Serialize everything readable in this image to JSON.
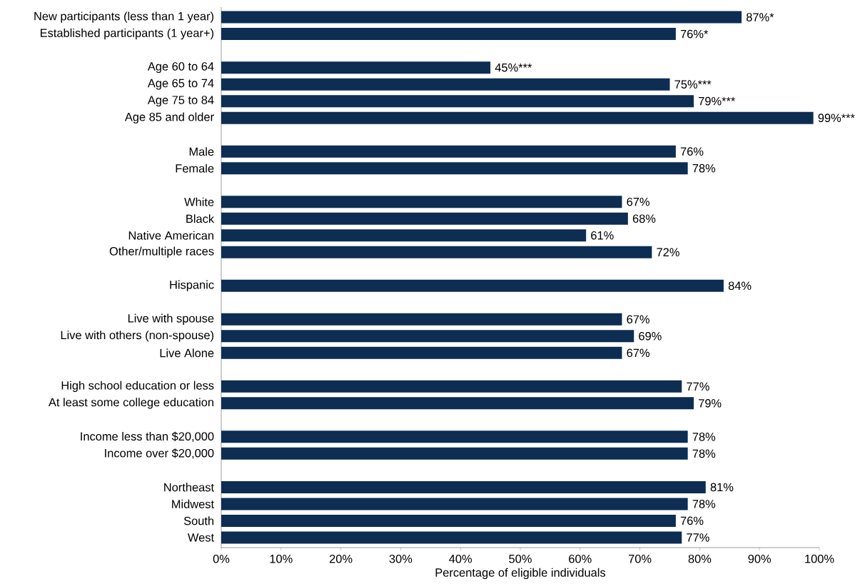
{
  "chart_data": {
    "type": "bar",
    "orientation": "horizontal",
    "xlabel": "Percentage of eligible individuals",
    "color": "#0d2d52",
    "categories": [
      "New participants (less than 1 year)",
      "Established participants (1 year+)",
      null,
      "Age 60 to 64",
      "Age 65 to 74",
      "Age 75 to 84",
      "Age 85 and older",
      null,
      "Male",
      "Female",
      null,
      "White",
      "Black",
      "Native American",
      "Other/multiple races",
      null,
      "Hispanic",
      null,
      "Live with spouse",
      "Live with others (non-spouse)",
      "Live Alone",
      null,
      "High school education or less",
      "At least some college education",
      null,
      "Income less than $20,000",
      "Income over $20,000",
      null,
      "Northeast",
      "Midwest",
      "South",
      "West"
    ],
    "values": [
      87,
      76,
      null,
      45,
      75,
      79,
      99,
      null,
      76,
      78,
      null,
      67,
      68,
      61,
      72,
      null,
      84,
      null,
      67,
      69,
      67,
      null,
      77,
      79,
      null,
      78,
      78,
      null,
      81,
      78,
      76,
      77
    ],
    "value_labels": [
      "87%*",
      "76%*",
      null,
      "45%***",
      "75%***",
      "79%***",
      "99%***",
      null,
      "76%",
      "78%",
      null,
      "67%",
      "68%",
      "61%",
      "72%",
      null,
      "84%",
      null,
      "67%",
      "69%",
      "67%",
      null,
      "77%",
      "79%",
      null,
      "78%",
      "78%",
      null,
      "81%",
      "78%",
      "76%",
      "77%"
    ],
    "xlim": [
      0,
      100
    ],
    "xticks": [
      {
        "value": 0,
        "label": "0%"
      },
      {
        "value": 10,
        "label": "10%"
      },
      {
        "value": 20,
        "label": "20%"
      },
      {
        "value": 30,
        "label": "30%"
      },
      {
        "value": 40,
        "label": "40%"
      },
      {
        "value": 50,
        "label": "50%"
      },
      {
        "value": 60,
        "label": "60%"
      },
      {
        "value": 70,
        "label": "70%"
      },
      {
        "value": 80,
        "label": "80%"
      },
      {
        "value": 90,
        "label": "90%"
      },
      {
        "value": 100,
        "label": "100%"
      }
    ],
    "grid": false
  }
}
